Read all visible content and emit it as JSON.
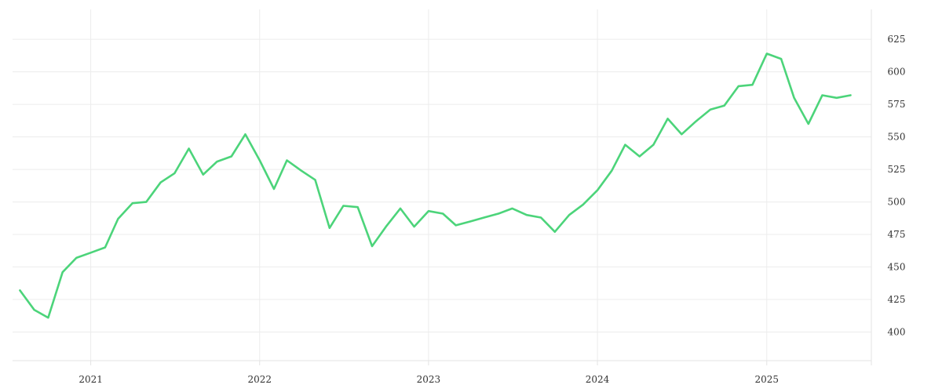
{
  "chart_data": {
    "type": "line",
    "title": "",
    "xlabel": "",
    "ylabel": "",
    "grid": true,
    "y_axis_position": "right",
    "ylim": [
      378,
      648
    ],
    "xlim": [
      "2020-07-16",
      "2025-08-15"
    ],
    "y_ticks": [
      400,
      425,
      450,
      475,
      500,
      525,
      550,
      575,
      600,
      625
    ],
    "x_ticks": [
      {
        "date": "2021-01-01",
        "label": "2021"
      },
      {
        "date": "2022-01-01",
        "label": "2022"
      },
      {
        "date": "2023-01-01",
        "label": "2023"
      },
      {
        "date": "2024-01-01",
        "label": "2024"
      },
      {
        "date": "2025-01-01",
        "label": "2025"
      }
    ],
    "series": [
      {
        "color": "#4cd47a",
        "points": [
          [
            "2020-08-01",
            432
          ],
          [
            "2020-09-01",
            417
          ],
          [
            "2020-10-01",
            411
          ],
          [
            "2020-11-01",
            446
          ],
          [
            "2020-12-01",
            457
          ],
          [
            "2021-01-01",
            461
          ],
          [
            "2021-02-01",
            465
          ],
          [
            "2021-03-01",
            487
          ],
          [
            "2021-04-01",
            499
          ],
          [
            "2021-05-01",
            500
          ],
          [
            "2021-06-01",
            515
          ],
          [
            "2021-07-01",
            522
          ],
          [
            "2021-08-01",
            541
          ],
          [
            "2021-09-01",
            521
          ],
          [
            "2021-10-01",
            531
          ],
          [
            "2021-11-01",
            535
          ],
          [
            "2021-12-01",
            552
          ],
          [
            "2022-01-01",
            532
          ],
          [
            "2022-02-01",
            510
          ],
          [
            "2022-03-01",
            532
          ],
          [
            "2022-04-01",
            524
          ],
          [
            "2022-05-01",
            517
          ],
          [
            "2022-06-01",
            480
          ],
          [
            "2022-07-01",
            497
          ],
          [
            "2022-08-01",
            496
          ],
          [
            "2022-09-01",
            466
          ],
          [
            "2022-10-01",
            481
          ],
          [
            "2022-11-01",
            495
          ],
          [
            "2022-12-01",
            481
          ],
          [
            "2023-01-01",
            493
          ],
          [
            "2023-02-01",
            491
          ],
          [
            "2023-03-01",
            482
          ],
          [
            "2023-04-01",
            485
          ],
          [
            "2023-05-01",
            488
          ],
          [
            "2023-06-01",
            491
          ],
          [
            "2023-07-01",
            495
          ],
          [
            "2023-08-01",
            490
          ],
          [
            "2023-09-01",
            488
          ],
          [
            "2023-10-01",
            477
          ],
          [
            "2023-11-01",
            490
          ],
          [
            "2023-12-01",
            498
          ],
          [
            "2024-01-01",
            509
          ],
          [
            "2024-02-01",
            524
          ],
          [
            "2024-03-01",
            544
          ],
          [
            "2024-04-01",
            535
          ],
          [
            "2024-05-01",
            544
          ],
          [
            "2024-06-01",
            564
          ],
          [
            "2024-07-01",
            552
          ],
          [
            "2024-08-01",
            562
          ],
          [
            "2024-09-01",
            571
          ],
          [
            "2024-10-01",
            574
          ],
          [
            "2024-11-01",
            589
          ],
          [
            "2024-12-01",
            590
          ],
          [
            "2025-01-01",
            614
          ],
          [
            "2025-02-01",
            610
          ],
          [
            "2025-03-01",
            580
          ],
          [
            "2025-04-01",
            560
          ],
          [
            "2025-05-01",
            582
          ],
          [
            "2025-06-01",
            580
          ],
          [
            "2025-07-01",
            582
          ]
        ]
      }
    ]
  }
}
